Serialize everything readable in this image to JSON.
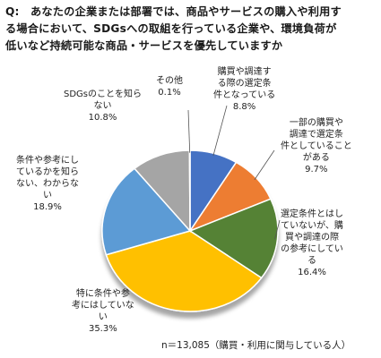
{
  "question": {
    "line1": "Q:　あなたの企業または部署では、商品やサービスの購入や利用す",
    "line2": "る場合において、SDGsへの取組を行っている企業や、環境負荷が",
    "line3": "低いなど持続可能な商品・サービスを優先していますか"
  },
  "note": "n＝13,085（購買・利用に関与している人）",
  "chart_data": {
    "type": "pie",
    "title": "",
    "unit": "%",
    "slices": [
      {
        "label_lines": [
          "購買や調達す",
          "る際の選定条",
          "件となっている"
        ],
        "value": 8.8,
        "pct_label": "8.8%",
        "color": "#4472c4"
      },
      {
        "label_lines": [
          "一部の購買や",
          "調達で選定条",
          "件としていること",
          "がある"
        ],
        "value": 9.7,
        "pct_label": "9.7%",
        "color": "#ed7d31"
      },
      {
        "label_lines": [
          "選定条件とはし",
          "ていないが、購",
          "買や調達の際",
          "の参考にしてい",
          "る"
        ],
        "value": 16.4,
        "pct_label": "16.4%",
        "color": "#548235"
      },
      {
        "label_lines": [
          "特に条件や参",
          "考にはしていな",
          "い"
        ],
        "value": 35.3,
        "pct_label": "35.3%",
        "color": "#ffc000"
      },
      {
        "label_lines": [
          "条件や参考にし",
          "ているかを知ら",
          "ない、わからな",
          "い"
        ],
        "value": 18.9,
        "pct_label": "18.9%",
        "color": "#5b9bd5"
      },
      {
        "label_lines": [
          "SDGsのことを知ら",
          "ない"
        ],
        "value": 10.8,
        "pct_label": "10.8%",
        "color": "#a5a5a5"
      },
      {
        "label_lines": [
          "その他"
        ],
        "value": 0.1,
        "pct_label": "0.1%",
        "color": "#264478"
      }
    ]
  }
}
